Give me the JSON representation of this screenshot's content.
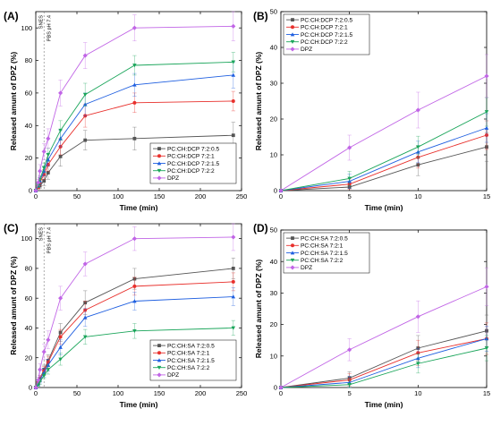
{
  "chart_data": [
    {
      "panel": "(A)",
      "type": "line",
      "xlabel": "Time (min)",
      "ylabel": "Released amunt of DPZ (%)",
      "xlim": [
        0,
        250
      ],
      "ylim": [
        0,
        110
      ],
      "xticks": [
        0,
        50,
        100,
        150,
        200,
        250
      ],
      "yticks": [
        0,
        20,
        40,
        60,
        80,
        100
      ],
      "legend_position": "bottom-right",
      "annotations": [
        {
          "text": "SNES",
          "x": 10
        },
        {
          "text": "PBS pH 7.4",
          "x": 15
        }
      ],
      "x": [
        0,
        3,
        5,
        10,
        15,
        30,
        60,
        120,
        240
      ],
      "series": [
        {
          "name": "PC:CH:DCP 7:2:0.5",
          "color": "#555555",
          "marker": "square",
          "values": [
            0,
            2,
            3,
            6,
            11,
            21,
            31,
            32,
            34
          ],
          "errors": [
            0,
            1,
            1.5,
            3,
            4,
            6,
            6,
            7,
            8
          ]
        },
        {
          "name": "PC:CH:DCP 7:2:1",
          "color": "#e8302c",
          "marker": "circle",
          "values": [
            0,
            2,
            5,
            10,
            16,
            27,
            46,
            54,
            55
          ],
          "errors": [
            0,
            1,
            2,
            3,
            4,
            5,
            7,
            6,
            6
          ]
        },
        {
          "name": "PC:CH:DCP 7:2:1.5",
          "color": "#1f5fe0",
          "marker": "triangle-up",
          "values": [
            0,
            3,
            6,
            12,
            19,
            32,
            53,
            65,
            71
          ],
          "errors": [
            0,
            1,
            2,
            3,
            4,
            5,
            7,
            7,
            8
          ]
        },
        {
          "name": "PC:CH:DCP 7:2:2",
          "color": "#1aa55a",
          "marker": "triangle-down",
          "values": [
            0,
            3,
            7,
            14,
            22,
            37,
            59,
            77,
            79
          ],
          "errors": [
            0,
            1,
            2,
            3,
            4,
            6,
            7,
            6,
            6
          ]
        },
        {
          "name": "DPZ",
          "color": "#c165e6",
          "marker": "diamond",
          "values": [
            0,
            5,
            12,
            24,
            32,
            60,
            83,
            100,
            101
          ],
          "errors": [
            0,
            2,
            4,
            5,
            6,
            8,
            8,
            8,
            9
          ]
        }
      ]
    },
    {
      "panel": "(B)",
      "type": "line",
      "xlabel": "Time (min)",
      "ylabel": "Released amunt of DPZ (%)",
      "xlim": [
        0,
        15
      ],
      "ylim": [
        0,
        50
      ],
      "xticks": [
        0,
        5,
        10,
        15
      ],
      "yticks": [
        0,
        10,
        20,
        30,
        40,
        50
      ],
      "legend_position": "top-left",
      "x": [
        0,
        5,
        10,
        15
      ],
      "series": [
        {
          "name": "PC:CH:DCP 7:2:0.5",
          "color": "#555555",
          "marker": "square",
          "values": [
            0,
            1.0,
            7.2,
            12.2
          ],
          "errors": [
            0,
            1.5,
            3,
            4
          ]
        },
        {
          "name": "PC:CH:DCP 7:2:1",
          "color": "#e8302c",
          "marker": "circle",
          "values": [
            0,
            1.8,
            9.3,
            15.5
          ],
          "errors": [
            0,
            1.5,
            3,
            4
          ]
        },
        {
          "name": "PC:CH:DCP 7:2:1.5",
          "color": "#1f5fe0",
          "marker": "triangle-up",
          "values": [
            0,
            2.6,
            10.8,
            17.5
          ],
          "errors": [
            0,
            2,
            3,
            4
          ]
        },
        {
          "name": "PC:CH:DCP 7:2:2",
          "color": "#1aa55a",
          "marker": "triangle-down",
          "values": [
            0,
            3.4,
            12.2,
            22.0
          ],
          "errors": [
            0,
            2,
            3,
            4
          ]
        },
        {
          "name": "DPZ",
          "color": "#c165e6",
          "marker": "diamond",
          "values": [
            0,
            12.0,
            22.5,
            32.0
          ],
          "errors": [
            0,
            3.5,
            5,
            6
          ]
        }
      ]
    },
    {
      "panel": "(C)",
      "type": "line",
      "xlabel": "Time (min)",
      "ylabel": "Released amunt of DPZ (%)",
      "xlim": [
        0,
        250
      ],
      "ylim": [
        0,
        110
      ],
      "xticks": [
        0,
        50,
        100,
        150,
        200,
        250
      ],
      "yticks": [
        0,
        20,
        40,
        60,
        80,
        100
      ],
      "legend_position": "bottom-right",
      "annotations": [
        {
          "text": "SNES",
          "x": 10
        },
        {
          "text": "PBS pH 7.4",
          "x": 15
        }
      ],
      "x": [
        0,
        3,
        5,
        10,
        15,
        30,
        60,
        120,
        240
      ],
      "series": [
        {
          "name": "PC:CH:SA 7:2:0.5",
          "color": "#555555",
          "marker": "square",
          "values": [
            0,
            3,
            6,
            12,
            18,
            37,
            57,
            73,
            80
          ],
          "errors": [
            0,
            1,
            2,
            3,
            4,
            6,
            8,
            7,
            7
          ]
        },
        {
          "name": "PC:CH:SA 7:2:1",
          "color": "#e8302c",
          "marker": "circle",
          "values": [
            0,
            3,
            6,
            11,
            17,
            34,
            52,
            68,
            71
          ],
          "errors": [
            0,
            1,
            2,
            3,
            4,
            5,
            6,
            6,
            6
          ]
        },
        {
          "name": "PC:CH:SA 7:2:1.5",
          "color": "#1f5fe0",
          "marker": "triangle-up",
          "values": [
            0,
            2,
            5,
            10,
            15,
            27,
            47,
            58,
            61
          ],
          "errors": [
            0,
            1,
            2,
            3,
            4,
            5,
            6,
            6,
            6
          ]
        },
        {
          "name": "PC:CH:SA 7:2:2",
          "color": "#1aa55a",
          "marker": "triangle-down",
          "values": [
            0,
            2,
            4,
            8,
            12,
            19,
            34,
            38,
            40
          ],
          "errors": [
            0,
            1,
            2,
            2,
            3,
            4,
            5,
            5,
            5
          ]
        },
        {
          "name": "DPZ",
          "color": "#c165e6",
          "marker": "diamond",
          "values": [
            0,
            5,
            12,
            24,
            32,
            60,
            83,
            100,
            101
          ],
          "errors": [
            0,
            2,
            4,
            5,
            6,
            8,
            8,
            8,
            9
          ]
        }
      ]
    },
    {
      "panel": "(D)",
      "type": "line",
      "xlabel": "Time (min)",
      "ylabel": "Released amunt of DPZ (%)",
      "xlim": [
        0,
        15
      ],
      "ylim": [
        0,
        50
      ],
      "xticks": [
        0,
        5,
        10,
        15
      ],
      "yticks": [
        0,
        10,
        20,
        30,
        40,
        50
      ],
      "legend_position": "top-left",
      "x": [
        0,
        5,
        10,
        15
      ],
      "series": [
        {
          "name": "PC:CH:SA 7:2:0.5",
          "color": "#555555",
          "marker": "square",
          "values": [
            0,
            3.0,
            12.5,
            18.0
          ],
          "errors": [
            0,
            2,
            4,
            5
          ]
        },
        {
          "name": "PC:CH:SA 7:2:1",
          "color": "#e8302c",
          "marker": "circle",
          "values": [
            0,
            2.4,
            11.0,
            15.5
          ],
          "errors": [
            0,
            2,
            4,
            5
          ]
        },
        {
          "name": "PC:CH:SA 7:2:1.5",
          "color": "#1f5fe0",
          "marker": "triangle-up",
          "values": [
            0,
            1.6,
            9.3,
            15.5
          ],
          "errors": [
            0,
            2,
            3,
            4
          ]
        },
        {
          "name": "PC:CH:SA 7:2:2",
          "color": "#1aa55a",
          "marker": "triangle-down",
          "values": [
            0,
            0.9,
            7.6,
            12.5
          ],
          "errors": [
            0,
            1.5,
            3,
            4
          ]
        },
        {
          "name": "DPZ",
          "color": "#c165e6",
          "marker": "diamond",
          "values": [
            0,
            12.0,
            22.5,
            32.0
          ],
          "errors": [
            0,
            3.5,
            5,
            6
          ]
        }
      ]
    }
  ]
}
